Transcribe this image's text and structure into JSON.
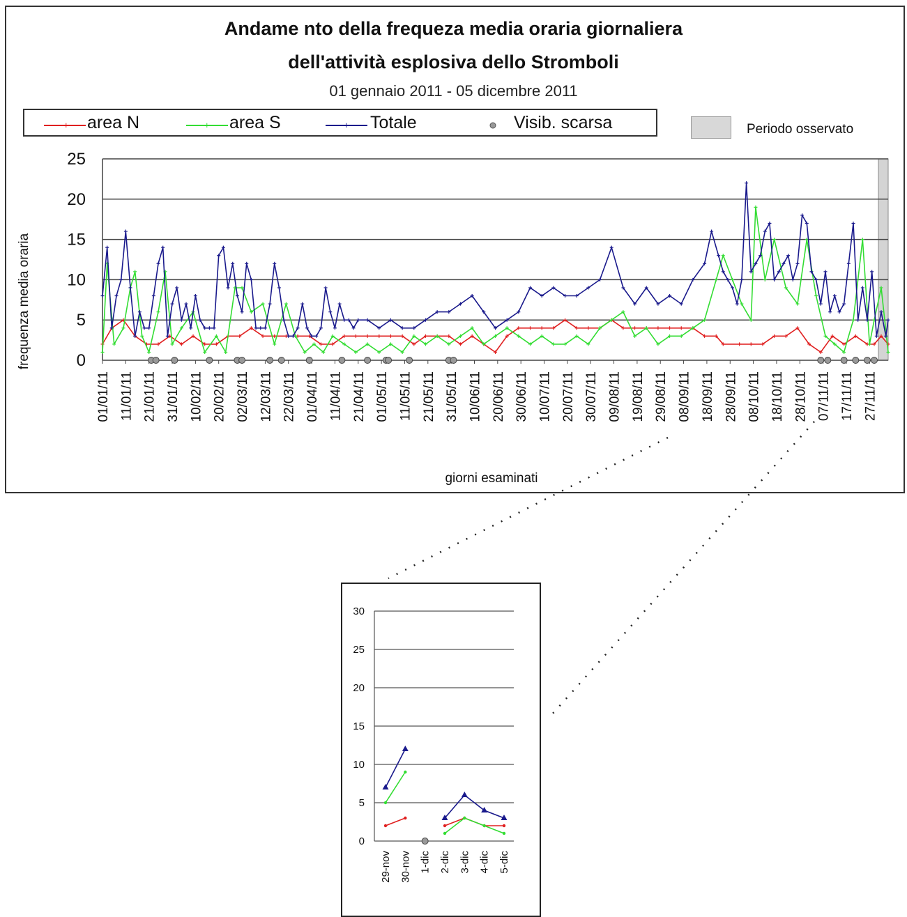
{
  "chart_data": [
    {
      "type": "line",
      "title": "Andame nto della frequeza media oraria giornaliera",
      "title_line2": "dell'attività esplosiva dello Stromboli",
      "subtitle": "01 gennaio 2011 - 05 dicembre 2011",
      "xlabel": "giorni esaminati",
      "ylabel": "frequenza media oraria",
      "ylim": [
        0,
        25
      ],
      "yticks": [
        "0",
        "5",
        "10",
        "15",
        "20",
        "25"
      ],
      "grid": true,
      "legend_placement": "top",
      "x_tick_labels": [
        "01/01/11",
        "11/01/11",
        "21/01/11",
        "31/01/11",
        "10/02/11",
        "20/02/11",
        "02/03/11",
        "12/03/11",
        "22/03/11",
        "01/04/11",
        "11/04/11",
        "21/04/11",
        "01/05/11",
        "11/05/11",
        "21/05/11",
        "31/05/11",
        "10/06/11",
        "20/06/11",
        "30/06/11",
        "10/07/11",
        "20/07/11",
        "30/07/11",
        "09/08/11",
        "19/08/11",
        "29/08/11",
        "08/09/11",
        "18/09/11",
        "28/09/11",
        "08/10/11",
        "18/10/11",
        "28/10/11",
        "07/11/11",
        "17/11/11",
        "27/11/11"
      ],
      "x_tick_days": [
        1,
        11,
        21,
        31,
        41,
        51,
        61,
        71,
        81,
        91,
        101,
        111,
        121,
        131,
        141,
        151,
        161,
        171,
        181,
        191,
        201,
        211,
        221,
        231,
        241,
        251,
        261,
        271,
        281,
        291,
        301,
        311,
        321,
        331
      ],
      "day_range": [
        1,
        339
      ],
      "observed_period_label": "Periodo osservato",
      "observed_period_days": [
        333,
        339
      ],
      "series": [
        {
          "name": "area N",
          "color": "#e02020",
          "days": [
            1,
            5,
            10,
            15,
            20,
            25,
            30,
            35,
            40,
            45,
            50,
            55,
            60,
            65,
            70,
            75,
            80,
            85,
            90,
            95,
            100,
            105,
            110,
            115,
            120,
            125,
            130,
            135,
            140,
            145,
            150,
            155,
            160,
            165,
            170,
            175,
            180,
            185,
            190,
            195,
            200,
            205,
            210,
            215,
            220,
            225,
            230,
            235,
            240,
            245,
            250,
            255,
            260,
            265,
            268,
            275,
            280,
            285,
            290,
            295,
            300,
            305,
            310,
            315,
            320,
            325,
            330,
            333,
            336,
            339
          ],
          "values": [
            2,
            4,
            5,
            3,
            2,
            2,
            3,
            2,
            3,
            2,
            2,
            3,
            3,
            4,
            3,
            3,
            3,
            3,
            3,
            2,
            2,
            3,
            3,
            3,
            3,
            3,
            3,
            2,
            3,
            3,
            3,
            2,
            3,
            2,
            1,
            3,
            4,
            4,
            4,
            4,
            5,
            4,
            4,
            4,
            5,
            4,
            4,
            4,
            4,
            4,
            4,
            4,
            3,
            3,
            2,
            2,
            2,
            2,
            3,
            3,
            4,
            2,
            1,
            3,
            2,
            3,
            2,
            2,
            3,
            2
          ]
        },
        {
          "name": "area S",
          "color": "#33dd33",
          "days": [
            1,
            3,
            6,
            10,
            13,
            15,
            18,
            21,
            25,
            28,
            31,
            35,
            40,
            45,
            50,
            54,
            58,
            61,
            65,
            70,
            75,
            80,
            84,
            88,
            92,
            96,
            100,
            105,
            110,
            115,
            120,
            125,
            130,
            135,
            140,
            145,
            150,
            155,
            160,
            165,
            170,
            175,
            180,
            185,
            190,
            195,
            200,
            205,
            210,
            215,
            220,
            225,
            230,
            235,
            240,
            245,
            250,
            255,
            260,
            265,
            268,
            272,
            276,
            280,
            282,
            286,
            290,
            295,
            300,
            304,
            308,
            312,
            316,
            320,
            324,
            328,
            331,
            333,
            336,
            339
          ],
          "values": [
            1,
            12,
            2,
            4,
            9,
            11,
            3,
            1,
            6,
            11,
            2,
            4,
            6,
            1,
            3,
            1,
            9,
            9,
            6,
            7,
            2,
            7,
            3,
            1,
            2,
            1,
            3,
            2,
            1,
            2,
            1,
            2,
            1,
            3,
            2,
            3,
            2,
            3,
            4,
            2,
            3,
            4,
            3,
            2,
            3,
            2,
            2,
            3,
            2,
            4,
            5,
            6,
            3,
            4,
            2,
            3,
            3,
            4,
            5,
            10,
            13,
            10,
            7,
            5,
            19,
            10,
            15,
            9,
            7,
            15,
            8,
            3,
            2,
            1,
            5,
            15,
            2,
            5,
            9,
            1
          ]
        },
        {
          "name": "Totale",
          "color": "#1a1a8c",
          "days": [
            1,
            3,
            5,
            7,
            9,
            11,
            13,
            15,
            17,
            19,
            21,
            23,
            25,
            27,
            29,
            31,
            33,
            35,
            37,
            39,
            41,
            43,
            45,
            47,
            49,
            51,
            53,
            55,
            57,
            59,
            61,
            63,
            65,
            67,
            69,
            71,
            73,
            75,
            77,
            79,
            81,
            83,
            85,
            87,
            89,
            91,
            93,
            95,
            97,
            99,
            101,
            103,
            105,
            107,
            109,
            111,
            115,
            120,
            125,
            130,
            135,
            140,
            145,
            150,
            155,
            160,
            165,
            170,
            175,
            180,
            185,
            190,
            195,
            200,
            205,
            210,
            215,
            220,
            225,
            230,
            235,
            240,
            245,
            250,
            255,
            260,
            263,
            266,
            268,
            270,
            272,
            274,
            276,
            278,
            280,
            282,
            284,
            286,
            288,
            290,
            292,
            294,
            296,
            298,
            300,
            302,
            304,
            306,
            308,
            310,
            312,
            314,
            316,
            318,
            320,
            322,
            324,
            326,
            328,
            330,
            332,
            334,
            336,
            338,
            339
          ],
          "values": [
            8,
            14,
            4,
            8,
            10,
            16,
            9,
            3,
            6,
            4,
            4,
            8,
            12,
            14,
            3,
            7,
            9,
            5,
            7,
            4,
            8,
            5,
            4,
            4,
            4,
            13,
            14,
            9,
            12,
            8,
            6,
            12,
            10,
            4,
            4,
            4,
            7,
            12,
            9,
            5,
            3,
            3,
            4,
            7,
            4,
            3,
            3,
            4,
            9,
            6,
            4,
            7,
            5,
            5,
            4,
            5,
            5,
            4,
            5,
            4,
            4,
            5,
            6,
            6,
            7,
            8,
            6,
            4,
            5,
            6,
            9,
            8,
            9,
            8,
            8,
            9,
            10,
            14,
            9,
            7,
            9,
            7,
            8,
            7,
            10,
            12,
            16,
            13,
            11,
            10,
            9,
            7,
            10,
            22,
            11,
            12,
            13,
            16,
            17,
            10,
            11,
            12,
            13,
            10,
            12,
            18,
            17,
            11,
            10,
            7,
            11,
            6,
            8,
            6,
            7,
            12,
            17,
            5,
            9,
            5,
            11,
            3,
            6,
            3,
            5
          ]
        }
      ],
      "visib_scarsa": {
        "name": "Visib. scarsa",
        "color": "#999999",
        "days": [
          22,
          24,
          32,
          47,
          59,
          61,
          73,
          78,
          90,
          104,
          115,
          123,
          124,
          133,
          150,
          152,
          310,
          313,
          320,
          325,
          330,
          333
        ]
      }
    },
    {
      "type": "line",
      "categories": [
        "29-nov",
        "30-nov",
        "1-dic",
        "2-dic",
        "3-dic",
        "4-dic",
        "5-dic"
      ],
      "ylim": [
        0,
        30
      ],
      "yticks": [
        "0",
        "5",
        "10",
        "15",
        "20",
        "25",
        "30"
      ],
      "grid": true,
      "series": [
        {
          "name": "area N",
          "color": "#e02020",
          "values": [
            2,
            3,
            null,
            2,
            3,
            2,
            2
          ]
        },
        {
          "name": "area S",
          "color": "#33dd33",
          "values": [
            5,
            9,
            null,
            1,
            3,
            2,
            1
          ]
        },
        {
          "name": "Totale",
          "color": "#1a1a8c",
          "values": [
            7,
            12,
            null,
            3,
            6,
            4,
            3
          ]
        }
      ],
      "visib_scarsa_values": [
        null,
        null,
        0,
        null,
        null,
        null,
        null
      ]
    }
  ]
}
